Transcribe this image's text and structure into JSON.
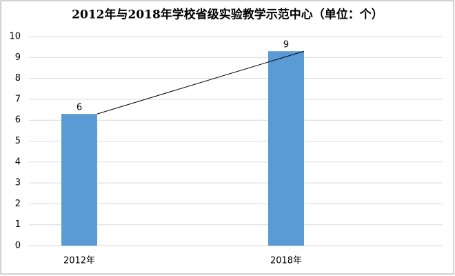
{
  "chart_data": {
    "type": "bar",
    "title": "2012年与2018年学校省级实验教学示范中心（单位：个）",
    "categories": [
      "2012年",
      "2018年"
    ],
    "values": [
      6.3,
      9.3
    ],
    "value_labels": [
      "6",
      "9"
    ],
    "color": "#5b9bd5",
    "line_color": "#000000",
    "ylim": [
      0,
      10
    ],
    "yticks": [
      0,
      1,
      2,
      3,
      4,
      5,
      6,
      7,
      8,
      9,
      10
    ],
    "grid": true
  }
}
